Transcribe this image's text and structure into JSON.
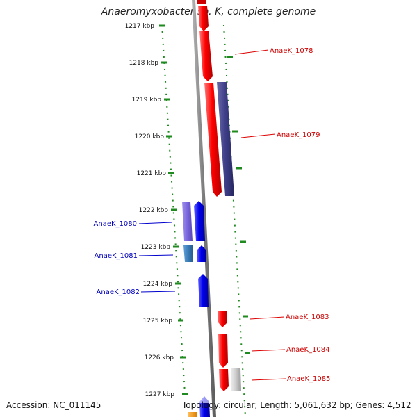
{
  "title": "Anaeromyxobacter sp. K, complete genome",
  "footer": {
    "accession": "Accession: NC_011145",
    "summary": "Topology: circular; Length: 5,061,632 bp; Genes: 4,512"
  },
  "ticks": [
    "1217 kbp",
    "1218 kbp",
    "1219 kbp",
    "1220 kbp",
    "1221 kbp",
    "1222 kbp",
    "1223 kbp",
    "1224 kbp",
    "1225 kbp",
    "1226 kbp",
    "1227 kbp"
  ],
  "genes": [
    {
      "label": "AnaeK_1078",
      "strand": "plus",
      "color": "#ff0000"
    },
    {
      "label": "AnaeK_1079",
      "strand": "plus",
      "color": "#e00000"
    },
    {
      "label": "AnaeK_1080",
      "strand": "minus",
      "color": "#0000dd"
    },
    {
      "label": "AnaeK_1081",
      "strand": "minus",
      "color": "#0000dd"
    },
    {
      "label": "AnaeK_1082",
      "strand": "minus",
      "color": "#0000dd"
    },
    {
      "label": "AnaeK_1083",
      "strand": "plus",
      "color": "#dd0000"
    },
    {
      "label": "AnaeK_1084",
      "strand": "plus",
      "color": "#dd0000"
    },
    {
      "label": "AnaeK_1085",
      "strand": "plus",
      "color": "#dd0000"
    }
  ],
  "colors": {
    "plus_label": "#cc0000",
    "minus_label": "#0000bb",
    "tick": "#1f8a1f",
    "backbone": "#808080"
  }
}
